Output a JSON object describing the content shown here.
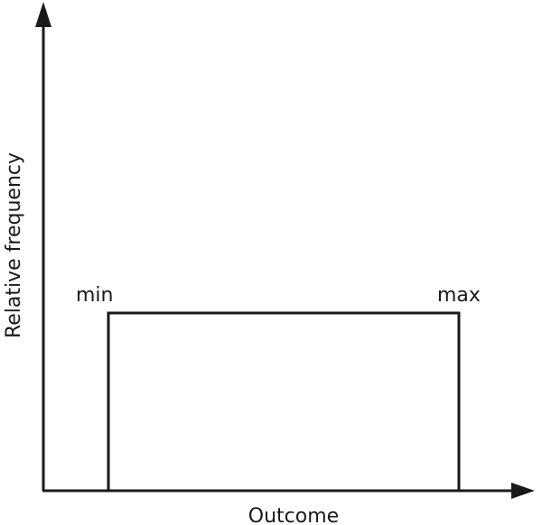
{
  "figure": {
    "y_axis_label": "Relative frequency",
    "x_axis_label": "Outcome",
    "min_label": "min",
    "max_label": "max"
  },
  "colors": {
    "stroke": "#1a1a1a",
    "background": "#ffffff"
  }
}
